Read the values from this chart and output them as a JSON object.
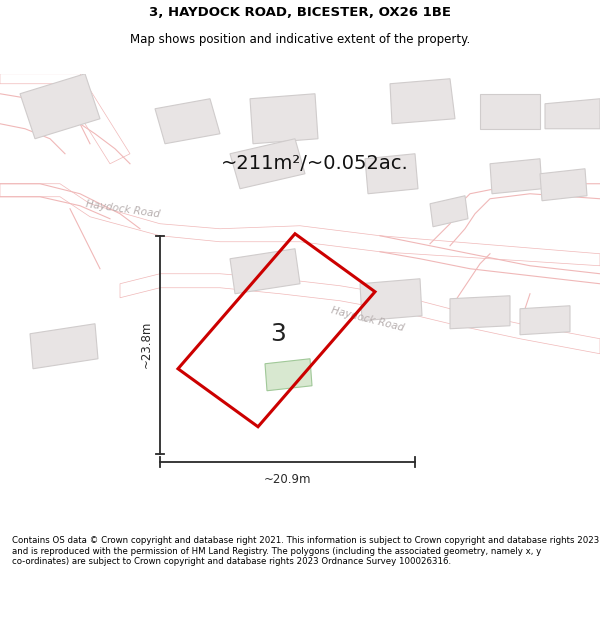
{
  "title": "3, HAYDOCK ROAD, BICESTER, OX26 1BE",
  "subtitle": "Map shows position and indicative extent of the property.",
  "area_label": "~211m²/~0.052ac.",
  "dim_width_label": "~20.9m",
  "dim_height_label": "~23.8m",
  "property_number": "3",
  "footer": "Contains OS data © Crown copyright and database right 2021. This information is subject to Crown copyright and database rights 2023 and is reproduced with the permission of HM Land Registry. The polygons (including the associated geometry, namely x, y co-ordinates) are subject to Crown copyright and database rights 2023 Ordnance Survey 100026316.",
  "map_bg": "#f8f4f4",
  "road_color": "#f0b8b8",
  "building_fill": "#e8e4e4",
  "building_edge": "#d0cccc",
  "property_color": "#cc0000",
  "dim_color": "#2a2a2a",
  "title_color": "#000000",
  "road_label_color": "#b8b0b0",
  "green_fill": "#d8e8d0"
}
